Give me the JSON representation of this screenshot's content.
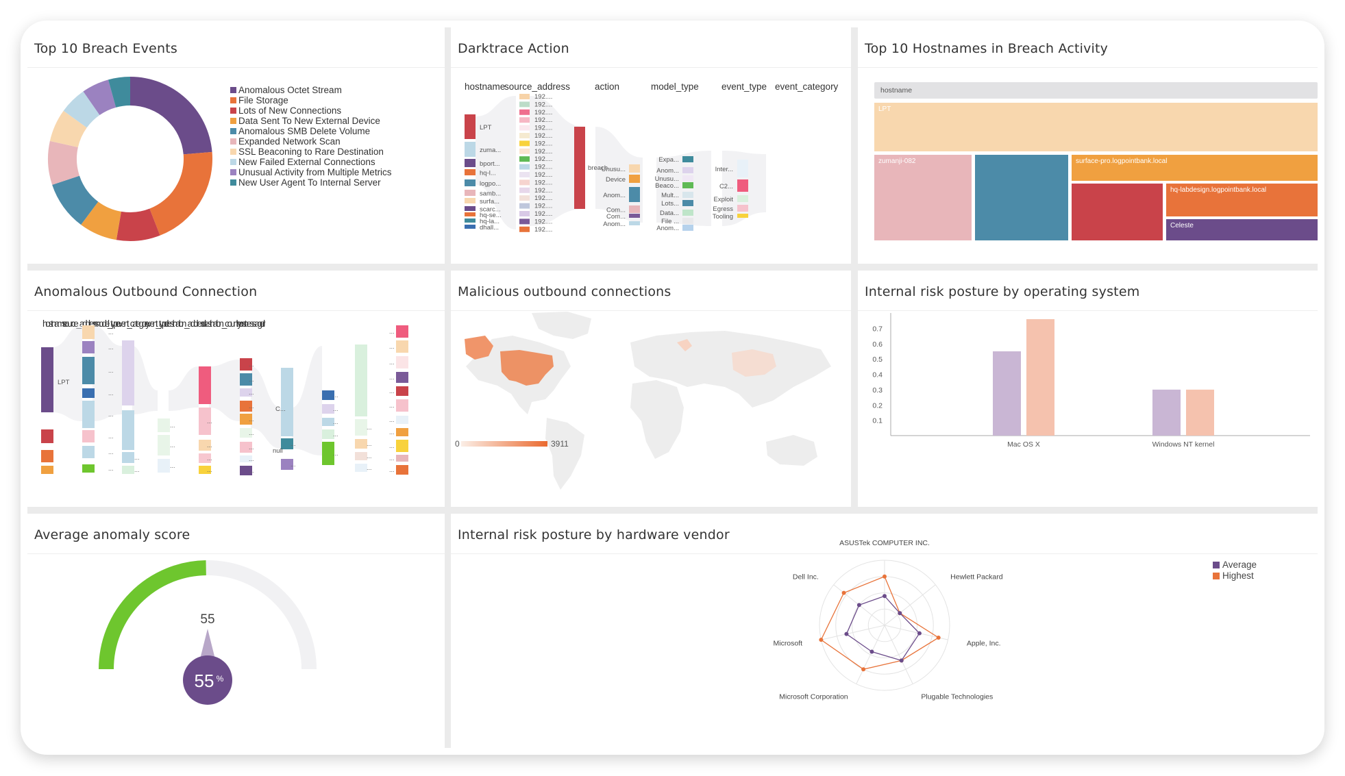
{
  "colors": {
    "purple": "#6b4c8a",
    "orange": "#e8733a",
    "red": "#c9434a",
    "amber": "#f0a040",
    "teal": "#4c8ba8",
    "pink": "#e8b6ba",
    "peach": "#f8d7ae",
    "lightblue": "#bcd8e6",
    "lavender": "#9b82c0",
    "tealdark": "#3f8b9c",
    "green": "#6ec62e",
    "gray": "#f1f1f3"
  },
  "panels": {
    "breach_events": {
      "title": "Top 10 Breach Events",
      "legend": [
        "Anomalous Octet Stream",
        "File Storage",
        "Lots of New Connections",
        "Data Sent To New External Device",
        "Anomalous SMB Delete Volume",
        "Expanded Network Scan",
        "SSL Beaconing to Rare Destination",
        "New Failed External Connections",
        "Unusual Activity from Multiple Metrics",
        "New User Agent To Internal Server"
      ]
    },
    "darktrace": {
      "title": "Darktrace Action",
      "headers": [
        "hostname",
        "source_address",
        "action",
        "model_type",
        "event_type",
        "event_category"
      ],
      "hosts": [
        "LPT",
        "zuma...",
        "bport...",
        "hq-l...",
        "logpo...",
        "samb...",
        "surfa...",
        "scarc...",
        "hq-se...",
        "hq-la...",
        "dhall..."
      ],
      "ip_label": "192....",
      "action_label": "breach",
      "model_labels": [
        "Unusu...",
        "Device",
        "Anom...",
        "Com...",
        "Com...",
        "Anom..."
      ],
      "event_labels": [
        "Expa...",
        "Anom...",
        "Unusu...",
        "Beaco...",
        "Mult...",
        "Lots...",
        "Data...",
        "File ...",
        "Anom..."
      ],
      "category_labels": [
        "Inter...",
        "C2...",
        "Exploit",
        "Egress",
        "Tooling"
      ]
    },
    "hostnames": {
      "title": "Top 10 Hostnames in Breach Activity",
      "header": "hostname",
      "cells": [
        "LPT",
        "zumanji-082",
        "surface-pro.logpointbank.local",
        "hq-labdesign.logpointbank.local",
        "Celeste"
      ]
    },
    "outbound": {
      "title": "Anomalous Outbound Connection",
      "headers_text": "hostname source_address model_type event_category event_type destination_address destination_country host message url",
      "labels": [
        "LPT",
        "C...",
        "null"
      ],
      "ellipsis": "..."
    },
    "malicious": {
      "title": "Malicious outbound connections",
      "scale_min": "0",
      "scale_max": "3911"
    },
    "os_posture": {
      "title": "Internal risk posture by operating system"
    },
    "anomaly": {
      "title": "Average anomaly score",
      "value": "55",
      "badge_value": "55",
      "badge_unit": "%",
      "level": 0.55
    },
    "hardware": {
      "title": "Internal risk posture by hardware vendor"
    }
  },
  "chart_data": [
    {
      "type": "pie",
      "values": [
        22,
        19,
        8,
        7,
        9,
        8,
        6,
        5,
        5,
        4
      ],
      "categories": [
        "Anomalous Octet Stream",
        "File Storage",
        "Lots of New Connections",
        "Data Sent To New External Device",
        "Anomalous SMB Delete Volume",
        "Expanded Network Scan",
        "SSL Beaconing to Rare Destination",
        "New Failed External Connections",
        "Unusual Activity from Multiple Metrics",
        "New User Agent To Internal Server"
      ],
      "colors": [
        "#6b4c8a",
        "#e8733a",
        "#c9434a",
        "#f0a040",
        "#4c8ba8",
        "#e8b6ba",
        "#f8d7ae",
        "#bcd8e6",
        "#9b82c0",
        "#3f8b9c"
      ],
      "legend": "right"
    },
    {
      "type": "bar",
      "categories": [
        "Mac OS X",
        "Windows NT kernel"
      ],
      "series": [
        {
          "values": [
            0.55,
            0.3
          ],
          "color": "#c9b6d4"
        },
        {
          "values": [
            0.76,
            0.3
          ],
          "color": "#f5c2ae"
        }
      ],
      "ylim": [
        0,
        0.8
      ],
      "yticks": [
        0.1,
        0.2,
        0.3,
        0.4,
        0.5,
        0.6,
        0.7
      ],
      "grid": false
    },
    {
      "type": "radar",
      "axes": [
        "ASUSTek COMPUTER INC.",
        "Hewlett Packard",
        "Apple, Inc.",
        "Plugable Technologies",
        "Microsoft Corporation",
        "Microsoft",
        "Dell Inc."
      ],
      "series": [
        {
          "name": "Average",
          "values": [
            0.45,
            0.3,
            0.55,
            0.6,
            0.45,
            0.6,
            0.5
          ],
          "color": "#6b4c8a"
        },
        {
          "name": "Highest",
          "values": [
            0.75,
            0.3,
            0.85,
            0.6,
            0.75,
            1.0,
            0.8
          ],
          "color": "#e8733a"
        }
      ],
      "max": 1.0,
      "legend": "top-right"
    }
  ]
}
